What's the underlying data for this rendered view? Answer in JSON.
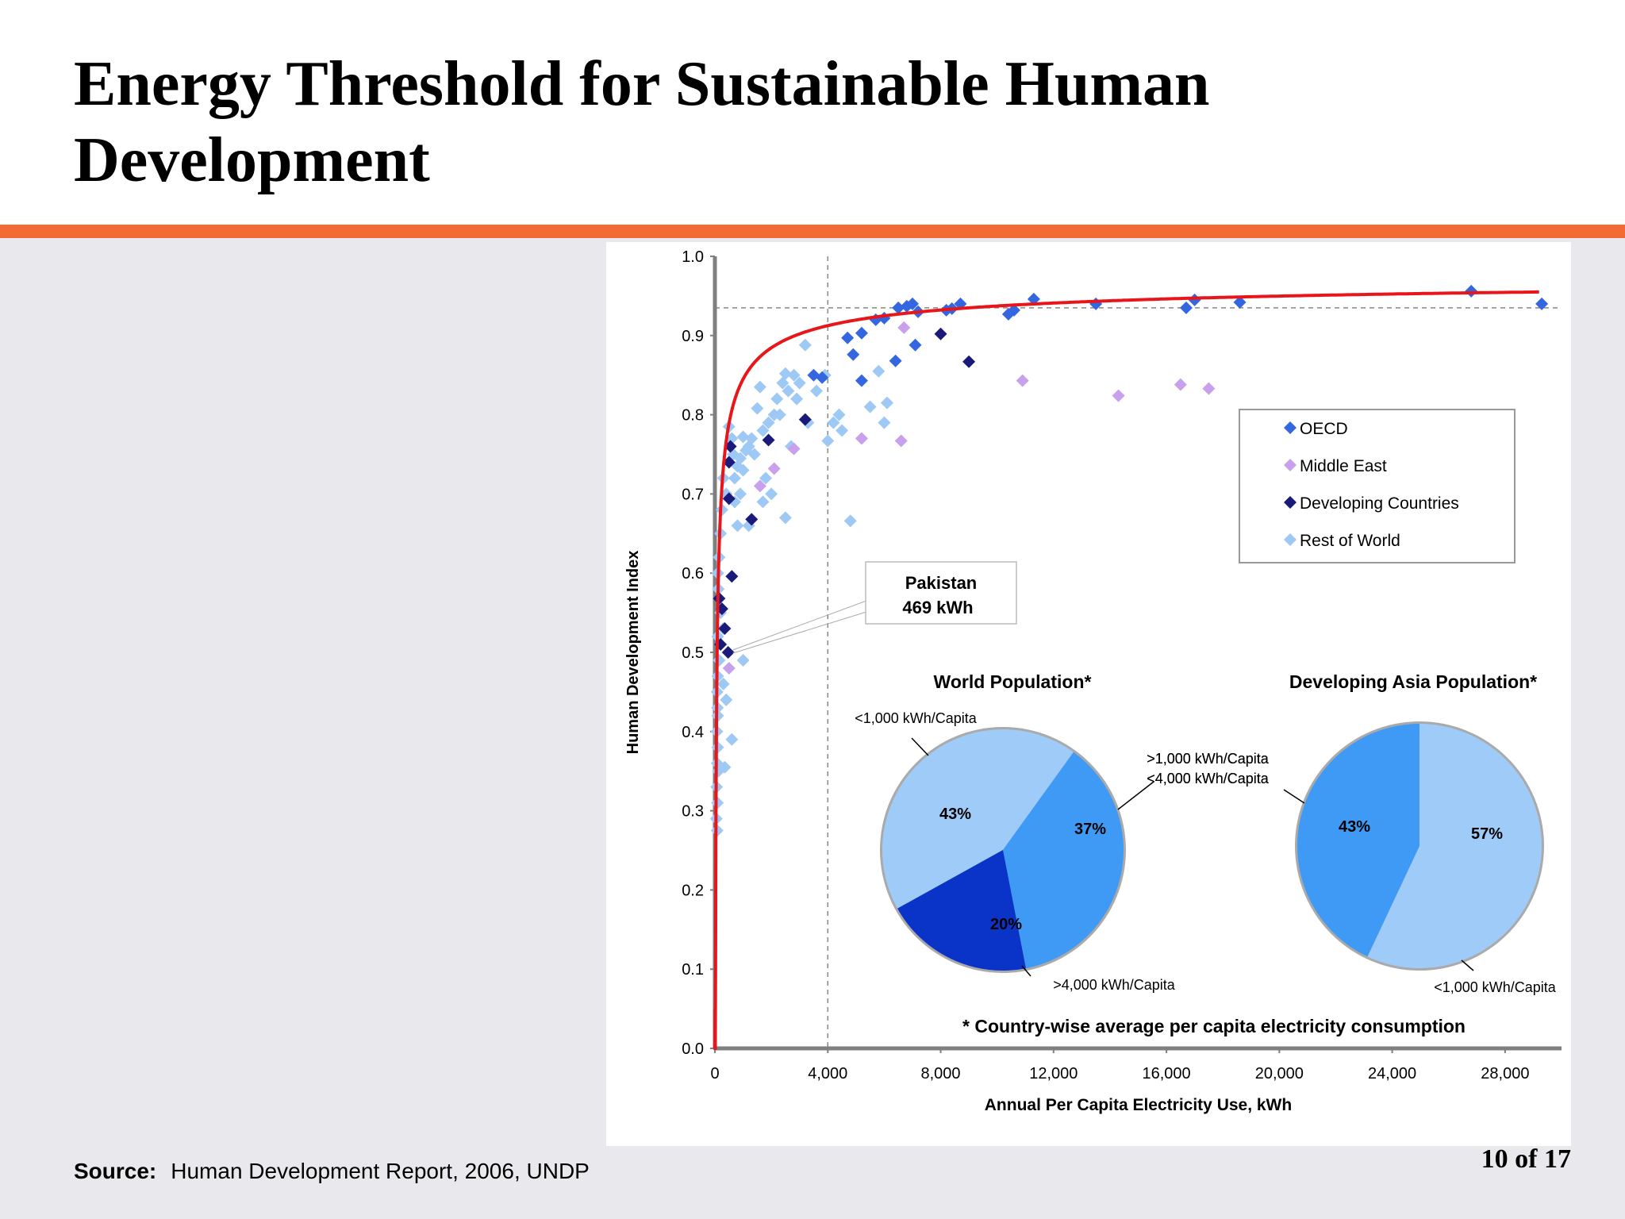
{
  "slide": {
    "title": "Energy Threshold for Sustainable Human Development",
    "page_number": "10 of 17",
    "source_label": "Source:",
    "source_text": "Human Development Report, 2006, UNDP",
    "accent_color": "#f26a34"
  },
  "chart_data": [
    {
      "type": "scatter",
      "xlabel": "Annual Per Capita Electricity Use, kWh",
      "ylabel": "Human Development Index",
      "xlim": [
        0,
        30000
      ],
      "ylim": [
        0,
        1.0
      ],
      "xticks": [
        0,
        4000,
        8000,
        12000,
        16000,
        20000,
        24000,
        28000
      ],
      "xtick_labels": [
        "0",
        "4,000",
        "8,000",
        "12,000",
        "16,000",
        "20,000",
        "24,000",
        "28,000"
      ],
      "yticks": [
        0,
        0.1,
        0.2,
        0.3,
        0.4,
        0.5,
        0.6,
        0.7,
        0.8,
        0.9,
        1.0
      ],
      "ytick_labels": [
        "0.0",
        "0.1",
        "0.2",
        "0.3",
        "0.4",
        "0.5",
        "0.6",
        "0.7",
        "0.8",
        "0.9",
        "1.0"
      ],
      "grid": false,
      "legend_position": "right",
      "reference_lines": {
        "x": 4000,
        "y": 0.935
      },
      "trend_color": "#e8161b",
      "annotation": {
        "line1": "Pakistan",
        "line2": "469 kWh",
        "x": 469,
        "y": 0.5
      },
      "footnote": "* Country-wise average per capita electricity consumption",
      "series": [
        {
          "name": "OECD",
          "color": "#3366e0",
          "points": [
            [
              4700,
              0.897
            ],
            [
              5200,
              0.903
            ],
            [
              5700,
              0.92
            ],
            [
              6000,
              0.922
            ],
            [
              6500,
              0.935
            ],
            [
              6800,
              0.937
            ],
            [
              7000,
              0.94
            ],
            [
              7200,
              0.93
            ],
            [
              8200,
              0.932
            ],
            [
              8400,
              0.934
            ],
            [
              8700,
              0.94
            ],
            [
              10400,
              0.927
            ],
            [
              10600,
              0.932
            ],
            [
              11300,
              0.946
            ],
            [
              13500,
              0.94
            ],
            [
              16700,
              0.935
            ],
            [
              17000,
              0.945
            ],
            [
              18600,
              0.942
            ],
            [
              26800,
              0.956
            ],
            [
              29300,
              0.94
            ],
            [
              6400,
              0.868
            ],
            [
              5200,
              0.843
            ],
            [
              3500,
              0.85
            ],
            [
              3800,
              0.847
            ],
            [
              7100,
              0.888
            ],
            [
              4900,
              0.876
            ]
          ]
        },
        {
          "name": "Middle East",
          "color": "#c9a0ec",
          "points": [
            [
              10900,
              0.843
            ],
            [
              14300,
              0.824
            ],
            [
              16500,
              0.838
            ],
            [
              17500,
              0.833
            ],
            [
              5200,
              0.77
            ],
            [
              6600,
              0.767
            ],
            [
              2800,
              0.757
            ],
            [
              2100,
              0.732
            ],
            [
              1600,
              0.71
            ],
            [
              6700,
              0.91
            ],
            [
              500,
              0.48
            ]
          ]
        },
        {
          "name": "Developing Countries",
          "color": "#1a1a7a",
          "points": [
            [
              8000,
              0.902
            ],
            [
              9000,
              0.867
            ],
            [
              3200,
              0.794
            ],
            [
              1900,
              0.768
            ],
            [
              1300,
              0.668
            ],
            [
              500,
              0.74
            ],
            [
              550,
              0.76
            ],
            [
              500,
              0.694
            ],
            [
              600,
              0.596
            ],
            [
              150,
              0.568
            ],
            [
              250,
              0.555
            ],
            [
              350,
              0.53
            ],
            [
              469,
              0.5
            ],
            [
              200,
              0.51
            ]
          ]
        },
        {
          "name": "Rest of World",
          "color": "#9fc9f5",
          "points": [
            [
              3200,
              0.888
            ],
            [
              2800,
              0.85
            ],
            [
              2600,
              0.83
            ],
            [
              2500,
              0.852
            ],
            [
              2400,
              0.84
            ],
            [
              2200,
              0.82
            ],
            [
              2100,
              0.8
            ],
            [
              1900,
              0.79
            ],
            [
              1700,
              0.78
            ],
            [
              1500,
              0.808
            ],
            [
              1300,
              0.77
            ],
            [
              1200,
              0.76
            ],
            [
              1100,
              0.755
            ],
            [
              1000,
              0.772
            ],
            [
              900,
              0.745
            ],
            [
              800,
              0.735
            ],
            [
              700,
              0.72
            ],
            [
              650,
              0.75
            ],
            [
              600,
              0.77
            ],
            [
              500,
              0.785
            ],
            [
              400,
              0.7
            ],
            [
              300,
              0.72
            ],
            [
              250,
              0.68
            ],
            [
              200,
              0.65
            ],
            [
              150,
              0.62
            ],
            [
              100,
              0.6
            ],
            [
              120,
              0.58
            ],
            [
              200,
              0.55
            ],
            [
              300,
              0.53
            ],
            [
              100,
              0.52
            ],
            [
              150,
              0.49
            ],
            [
              100,
              0.47
            ],
            [
              80,
              0.45
            ],
            [
              90,
              0.43
            ],
            [
              100,
              0.42
            ],
            [
              70,
              0.4
            ],
            [
              100,
              0.38
            ],
            [
              80,
              0.36
            ],
            [
              120,
              0.35
            ],
            [
              60,
              0.33
            ],
            [
              90,
              0.31
            ],
            [
              50,
              0.29
            ],
            [
              80,
              0.275
            ],
            [
              300,
              0.46
            ],
            [
              400,
              0.44
            ],
            [
              600,
              0.39
            ],
            [
              350,
              0.355
            ],
            [
              1000,
              0.49
            ],
            [
              2500,
              0.67
            ],
            [
              2700,
              0.76
            ],
            [
              3000,
              0.84
            ],
            [
              3300,
              0.79
            ],
            [
              3600,
              0.83
            ],
            [
              4000,
              0.767
            ],
            [
              4200,
              0.79
            ],
            [
              4400,
              0.8
            ],
            [
              4500,
              0.78
            ],
            [
              4800,
              0.666
            ],
            [
              5500,
              0.81
            ],
            [
              5800,
              0.855
            ],
            [
              6000,
              0.79
            ],
            [
              6100,
              0.815
            ],
            [
              3900,
              0.85
            ],
            [
              1600,
              0.835
            ],
            [
              1800,
              0.72
            ],
            [
              2000,
              0.7
            ],
            [
              1700,
              0.69
            ],
            [
              1400,
              0.75
            ],
            [
              1200,
              0.66
            ],
            [
              900,
              0.7
            ],
            [
              700,
              0.69
            ],
            [
              800,
              0.66
            ],
            [
              1000,
              0.73
            ],
            [
              2300,
              0.8
            ],
            [
              2900,
              0.82
            ]
          ]
        }
      ],
      "legend": [
        "OECD",
        "Middle East",
        "Developing Countries",
        "Rest of World"
      ]
    },
    {
      "type": "pie",
      "title": "World Population*",
      "slices": [
        {
          "label": "<1,000 kWh/Capita",
          "value": 43,
          "display": "43%",
          "color": "#9fcbf8"
        },
        {
          "label": ">1,000 kWh/Capita\n<4,000 kWh/Capita",
          "value": 37,
          "display": "37%",
          "color": "#3e9af5"
        },
        {
          "label": ">4,000 kWh/Capita",
          "value": 20,
          "display": "20%",
          "color": "#0a34c8"
        }
      ]
    },
    {
      "type": "pie",
      "title": "Developing Asia Population*",
      "slices": [
        {
          "label": "<1,000 kWh/Capita",
          "value": 57,
          "display": "57%",
          "color": "#9fcbf8"
        },
        {
          "label": ">1,000 kWh/Capita\n<4,000 kWh/Capita",
          "value": 43,
          "display": "43%",
          "color": "#3e9af5"
        }
      ]
    }
  ]
}
